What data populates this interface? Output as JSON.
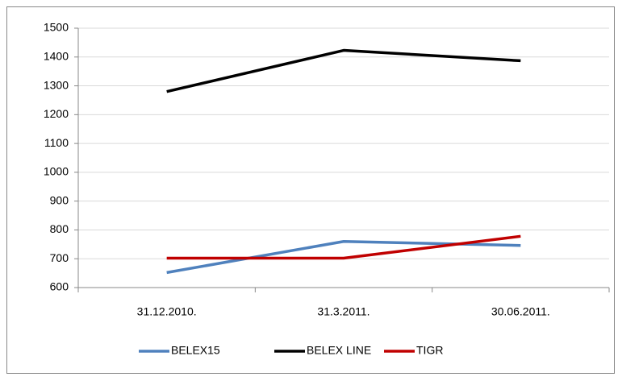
{
  "chart_data": {
    "type": "line",
    "categories": [
      "31.12.2010.",
      "31.3.2011.",
      "30.06.2011."
    ],
    "series": [
      {
        "name": "BELEX15",
        "color": "#4f81bd",
        "values": [
          652,
          760,
          746
        ]
      },
      {
        "name": "BELEX LINE",
        "color": "#000000",
        "values": [
          1280,
          1423,
          1387
        ]
      },
      {
        "name": "TIGR",
        "color": "#c00000",
        "values": [
          702,
          702,
          778
        ]
      }
    ],
    "ylim": [
      600,
      1500
    ],
    "yticks": [
      600,
      700,
      800,
      900,
      1000,
      1100,
      1200,
      1300,
      1400,
      1500
    ],
    "grid": true,
    "legend": "bottom"
  }
}
